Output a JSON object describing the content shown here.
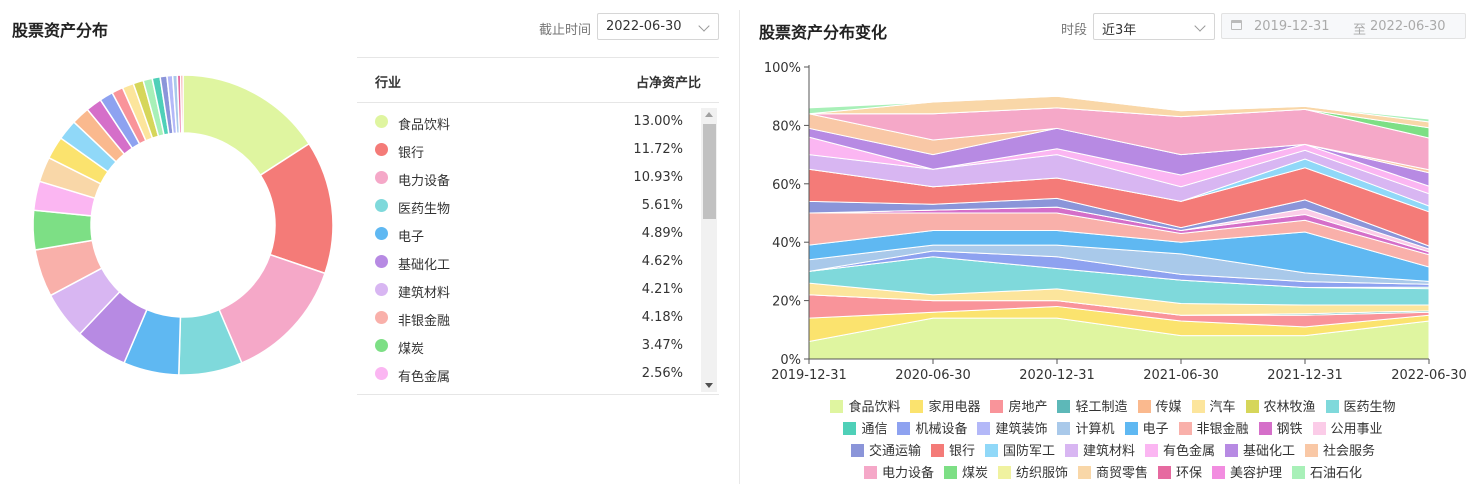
{
  "left": {
    "title": "股票资产分布",
    "date_label": "截止时间",
    "date_value": "2022-06-30",
    "table": {
      "col_industry": "行业",
      "col_ratio": "占净资产比",
      "rows": [
        {
          "name": "食品饮料",
          "pct": "13.00%",
          "color": "#dff5a0"
        },
        {
          "name": "银行",
          "pct": "11.72%",
          "color": "#f47b78"
        },
        {
          "name": "电力设备",
          "pct": "10.93%",
          "color": "#f5a8c8"
        },
        {
          "name": "医药生物",
          "pct": "5.61%",
          "color": "#7fd9db"
        },
        {
          "name": "电子",
          "pct": "4.89%",
          "color": "#5fb8f2"
        },
        {
          "name": "基础化工",
          "pct": "4.62%",
          "color": "#b78ae3"
        },
        {
          "name": "建筑材料",
          "pct": "4.21%",
          "color": "#d8b6f2"
        },
        {
          "name": "非银金融",
          "pct": "4.18%",
          "color": "#f9b0aa"
        },
        {
          "name": "煤炭",
          "pct": "3.47%",
          "color": "#7ddf85"
        },
        {
          "name": "有色金属",
          "pct": "2.56%",
          "color": "#fbb6f2"
        }
      ]
    }
  },
  "right": {
    "title": "股票资产分布变化",
    "period_label": "时段",
    "period_value": "近3年",
    "range_start": "2019-12-31",
    "range_sep": "至",
    "range_end": "2022-06-30"
  },
  "chart_data": [
    {
      "type": "pie",
      "donut": true,
      "slices": [
        {
          "name": "食品饮料",
          "value": 13.0,
          "color": "#dff5a0"
        },
        {
          "name": "银行",
          "value": 11.72,
          "color": "#f47b78"
        },
        {
          "name": "电力设备",
          "value": 10.93,
          "color": "#f5a8c8"
        },
        {
          "name": "医药生物",
          "value": 5.61,
          "color": "#7fd9db"
        },
        {
          "name": "电子",
          "value": 4.89,
          "color": "#5fb8f2"
        },
        {
          "name": "基础化工",
          "value": 4.62,
          "color": "#b78ae3"
        },
        {
          "name": "建筑材料",
          "value": 4.21,
          "color": "#d8b6f2"
        },
        {
          "name": "非银金融",
          "value": 4.18,
          "color": "#f9b0aa"
        },
        {
          "name": "煤炭",
          "value": 3.47,
          "color": "#7ddf85"
        },
        {
          "name": "有色金属",
          "value": 2.56,
          "color": "#fbb6f2"
        },
        {
          "name": "",
          "value": 2.2,
          "color": "#f9d7a8"
        },
        {
          "name": "",
          "value": 2.0,
          "color": "#fbe36e"
        },
        {
          "name": "",
          "value": 1.8,
          "color": "#90d8f8"
        },
        {
          "name": "",
          "value": 1.6,
          "color": "#fab98e"
        },
        {
          "name": "",
          "value": 1.4,
          "color": "#d56fc9"
        },
        {
          "name": "",
          "value": 1.2,
          "color": "#8ea2f0"
        },
        {
          "name": "",
          "value": 1.0,
          "color": "#f9949a"
        },
        {
          "name": "",
          "value": 1.0,
          "color": "#fce59c"
        },
        {
          "name": "",
          "value": 0.9,
          "color": "#d6d65a"
        },
        {
          "name": "",
          "value": 0.8,
          "color": "#a8f0b8"
        },
        {
          "name": "",
          "value": 0.7,
          "color": "#4fd0b8"
        },
        {
          "name": "",
          "value": 0.6,
          "color": "#8b95d9"
        },
        {
          "name": "",
          "value": 0.5,
          "color": "#b3b8f8"
        },
        {
          "name": "",
          "value": 0.4,
          "color": "#a9c9ea"
        },
        {
          "name": "",
          "value": 0.3,
          "color": "#e66aa0"
        },
        {
          "name": "",
          "value": 0.2,
          "color": "#f08a8a"
        }
      ]
    },
    {
      "type": "area",
      "stacked": true,
      "x": [
        "2019-12-31",
        "2020-06-30",
        "2020-12-31",
        "2021-06-30",
        "2021-12-31",
        "2022-06-30"
      ],
      "ylim": [
        0,
        100
      ],
      "yticks": [
        "0%",
        "20%",
        "40%",
        "60%",
        "80%",
        "100%"
      ],
      "series": [
        {
          "name": "食品饮料",
          "color": "#dff5a0",
          "values": [
            6,
            14,
            14,
            8,
            8,
            13
          ]
        },
        {
          "name": "家用电器",
          "color": "#fbe36e",
          "values": [
            8,
            2,
            4,
            5,
            3,
            2
          ]
        },
        {
          "name": "房地产",
          "color": "#f9949a",
          "values": [
            8,
            4,
            2,
            2,
            4,
            1
          ]
        },
        {
          "name": "轻工制造",
          "color": "#5db8b8",
          "values": [
            0,
            0,
            0,
            0,
            0.5,
            0.5
          ]
        },
        {
          "name": "传媒",
          "color": "#fab98e",
          "values": [
            0,
            0,
            0,
            0,
            0,
            0
          ]
        },
        {
          "name": "汽车",
          "color": "#fce59c",
          "values": [
            4,
            2,
            4,
            4,
            3,
            2
          ]
        },
        {
          "name": "农林牧渔",
          "color": "#d6d65a",
          "values": [
            0,
            0,
            0,
            0,
            0,
            0
          ]
        },
        {
          "name": "医药生物",
          "color": "#7fd9db",
          "values": [
            4,
            13,
            7,
            8,
            6,
            5.6
          ]
        },
        {
          "name": "通信",
          "color": "#4fd0b8",
          "values": [
            0,
            0,
            0,
            0,
            0,
            0.5
          ]
        },
        {
          "name": "机械设备",
          "color": "#8ea2f0",
          "values": [
            0,
            2,
            4,
            2,
            2,
            1
          ]
        },
        {
          "name": "建筑装饰",
          "color": "#b3b8f8",
          "values": [
            0,
            0,
            0,
            0,
            0,
            0
          ]
        },
        {
          "name": "计算机",
          "color": "#a9c9ea",
          "values": [
            4,
            2,
            4,
            7,
            3,
            1
          ]
        },
        {
          "name": "电子",
          "color": "#5fb8f2",
          "values": [
            5,
            5,
            5,
            4,
            14,
            4.9
          ]
        },
        {
          "name": "非银金融",
          "color": "#f9b0aa",
          "values": [
            11,
            6,
            6,
            3,
            4,
            4.2
          ]
        },
        {
          "name": "钢铁",
          "color": "#d56fc9",
          "values": [
            0,
            1,
            2,
            1,
            2,
            1
          ]
        },
        {
          "name": "公用事业",
          "color": "#fbcce8",
          "values": [
            0,
            0,
            0,
            0,
            2,
            1
          ]
        },
        {
          "name": "交通运输",
          "color": "#8b95d9",
          "values": [
            4,
            2,
            3,
            1,
            3,
            1
          ]
        },
        {
          "name": "银行",
          "color": "#f47b78",
          "values": [
            11,
            6,
            7,
            9,
            11,
            11.7
          ]
        },
        {
          "name": "国防军工",
          "color": "#90d8f8",
          "values": [
            0,
            0,
            0,
            0,
            3,
            2
          ]
        },
        {
          "name": "建筑材料",
          "color": "#d8b6f2",
          "values": [
            5,
            6,
            8,
            5,
            3,
            4.2
          ]
        },
        {
          "name": "有色金属",
          "color": "#fbb6f2",
          "values": [
            6,
            0,
            2,
            4,
            2,
            2.6
          ]
        },
        {
          "name": "基础化工",
          "color": "#b78ae3",
          "values": [
            3,
            5,
            7,
            7,
            0,
            4.6
          ]
        },
        {
          "name": "社会服务",
          "color": "#f9c8a6",
          "values": [
            5,
            5,
            0,
            0,
            0,
            1
          ]
        },
        {
          "name": "电力设备",
          "color": "#f5a8c8",
          "values": [
            0,
            9,
            7,
            13,
            12,
            10.9
          ]
        },
        {
          "name": "煤炭",
          "color": "#7ddf85",
          "values": [
            0,
            0,
            0,
            0,
            0,
            3.5
          ]
        },
        {
          "name": "纺织服饰",
          "color": "#f0f2a0",
          "values": [
            0,
            0,
            0,
            0,
            0,
            0
          ]
        },
        {
          "name": "商贸零售",
          "color": "#f9d7a8",
          "values": [
            0,
            4,
            4,
            2,
            1,
            2
          ]
        },
        {
          "name": "环保",
          "color": "#e66aa0",
          "values": [
            0,
            0,
            0,
            0,
            0,
            0
          ]
        },
        {
          "name": "美容护理",
          "color": "#f28de0",
          "values": [
            0,
            0,
            0,
            0,
            0,
            0
          ]
        },
        {
          "name": "石油石化",
          "color": "#a8f0b8",
          "values": [
            2,
            0,
            0,
            0,
            0,
            1
          ]
        }
      ]
    }
  ]
}
